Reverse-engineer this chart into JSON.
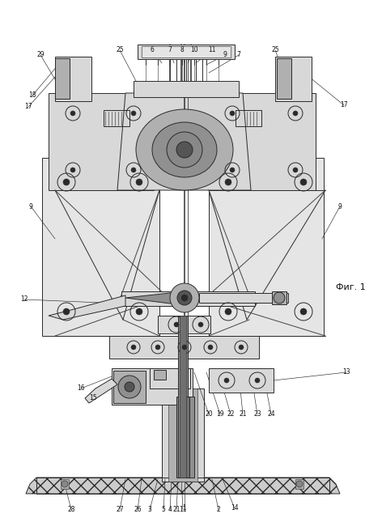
{
  "figsize": [
    4.52,
    6.4
  ],
  "dpi": 100,
  "bg_color": "#ffffff",
  "fig_label": "Фиг. 1",
  "lc": "#2a2a2a",
  "lw": 0.7,
  "tlw": 0.4,
  "thk": 1.1,
  "gray1": "#c8c8c8",
  "gray2": "#b0b0b0",
  "gray3": "#909090",
  "gray4": "#d8d8d8",
  "gray5": "#e5e5e5",
  "hatch_gray": "#bebebe"
}
